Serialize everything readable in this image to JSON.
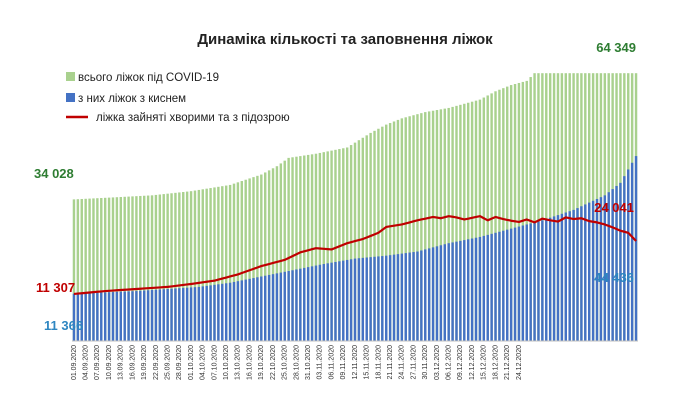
{
  "chart_data": {
    "type": "bar",
    "title": "Динаміка кількості та заповнення ліжок",
    "xlabel": "",
    "ylabel": "",
    "ylim": [
      0,
      68000
    ],
    "grid": false,
    "legend_placement": "top-left",
    "x_ticks": [
      "01.09.2020",
      "04.09.2020",
      "07.09.2020",
      "10.09.2020",
      "13.09.2020",
      "16.09.2020",
      "19.09.2020",
      "22.09.2020",
      "25.09.2020",
      "28.09.2020",
      "01.10.2020",
      "04.10.2020",
      "07.10.2020",
      "10.10.2020",
      "13.10.2020",
      "16.10.2020",
      "19.10.2020",
      "22.10.2020",
      "25.10.2020",
      "28.10.2020",
      "31.10.2020",
      "03.11.2020",
      "06.11.2020",
      "09.11.2020",
      "12.11.2020",
      "15.11.2020",
      "18.11.2020",
      "21.11.2020",
      "24.11.2020",
      "27.11.2020",
      "30.11.2020",
      "03.12.2020",
      "06.12.2020",
      "09.12.2020",
      "12.12.2020",
      "15.12.2020",
      "18.12.2020",
      "21.12.2020",
      "24.12.2020"
    ],
    "series": [
      {
        "name": "всього ліжок під COVID-19",
        "kind": "bar",
        "color": "#a9d18e",
        "keyframes": [
          [
            0,
            34028
          ],
          [
            10,
            34500
          ],
          [
            20,
            35000
          ],
          [
            30,
            36000
          ],
          [
            40,
            37500
          ],
          [
            48,
            40000
          ],
          [
            52,
            42000
          ],
          [
            55,
            44000
          ],
          [
            62,
            45000
          ],
          [
            70,
            46500
          ],
          [
            76,
            50000
          ],
          [
            80,
            52000
          ],
          [
            84,
            53500
          ],
          [
            90,
            55000
          ],
          [
            96,
            56000
          ],
          [
            100,
            57000
          ],
          [
            104,
            58000
          ],
          [
            108,
            60000
          ],
          [
            112,
            61500
          ],
          [
            116,
            62500
          ],
          [
            118,
            64349
          ],
          [
            142,
            64349
          ],
          [
            144,
            64349
          ]
        ]
      },
      {
        "name": "з них ліжок з киснем",
        "kind": "bar",
        "color": "#4472c4",
        "keyframes": [
          [
            0,
            11366
          ],
          [
            16,
            12000
          ],
          [
            32,
            13000
          ],
          [
            40,
            14000
          ],
          [
            48,
            15500
          ],
          [
            56,
            17000
          ],
          [
            64,
            18500
          ],
          [
            72,
            19800
          ],
          [
            80,
            20500
          ],
          [
            88,
            21500
          ],
          [
            96,
            23500
          ],
          [
            104,
            25000
          ],
          [
            112,
            27000
          ],
          [
            120,
            29000
          ],
          [
            128,
            31500
          ],
          [
            136,
            35000
          ],
          [
            140,
            38000
          ],
          [
            144,
            44436
          ]
        ]
      },
      {
        "name": "ліжка зайняті хворими та з підозрою",
        "kind": "line",
        "color": "#c00000",
        "keyframes": [
          [
            0,
            11307
          ],
          [
            8,
            12000
          ],
          [
            16,
            12500
          ],
          [
            24,
            13000
          ],
          [
            30,
            13700
          ],
          [
            36,
            14500
          ],
          [
            42,
            16000
          ],
          [
            48,
            18000
          ],
          [
            54,
            19500
          ],
          [
            58,
            21300
          ],
          [
            62,
            22300
          ],
          [
            66,
            22000
          ],
          [
            70,
            23500
          ],
          [
            74,
            24500
          ],
          [
            78,
            26000
          ],
          [
            80,
            27400
          ],
          [
            84,
            28000
          ],
          [
            88,
            29000
          ],
          [
            92,
            29800
          ],
          [
            94,
            29500
          ],
          [
            96,
            30000
          ],
          [
            98,
            29700
          ],
          [
            100,
            29200
          ],
          [
            104,
            30000
          ],
          [
            106,
            29000
          ],
          [
            108,
            29800
          ],
          [
            110,
            29300
          ],
          [
            112,
            28900
          ],
          [
            114,
            28600
          ],
          [
            116,
            29200
          ],
          [
            118,
            28500
          ],
          [
            120,
            29400
          ],
          [
            122,
            29000
          ],
          [
            124,
            28700
          ],
          [
            126,
            29700
          ],
          [
            128,
            29300
          ],
          [
            130,
            29500
          ],
          [
            132,
            28800
          ],
          [
            134,
            28500
          ],
          [
            136,
            28000
          ],
          [
            138,
            27300
          ],
          [
            140,
            26500
          ],
          [
            142,
            26000
          ],
          [
            144,
            24041
          ]
        ]
      }
    ],
    "n_days": 145,
    "annotations": {
      "total_start": "34 028",
      "total_end": "64 349",
      "occupied_start": "11 307",
      "occupied_end": "24 041",
      "oxygen_start": "11 366",
      "oxygen_end": "44 436"
    },
    "colors": {
      "total": "#a9d18e",
      "oxygen": "#4472c4",
      "occupied": "#c00000",
      "total_label": "#2e7d32",
      "occupied_label": "#c00000",
      "oxygen_label": "#2e86c1"
    }
  }
}
